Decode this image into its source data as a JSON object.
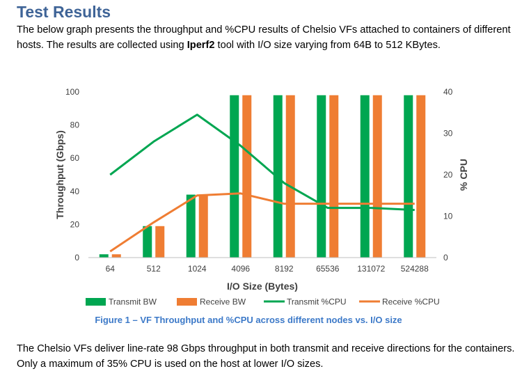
{
  "heading": "Test Results",
  "intro": {
    "pre": "The below graph presents the throughput and %CPU results of Chelsio VFs attached to containers of different hosts. The results are collected using ",
    "bold": "Iperf2",
    "post": " tool with I/O size varying from 64B to 512 KBytes."
  },
  "caption": "Figure 1 – VF Throughput and %CPU across different nodes vs. I/O size",
  "conclusion": "The Chelsio VFs deliver line-rate 98 Gbps throughput in both transmit and receive directions for the containers. Only a maximum of 35% CPU is used on the host at lower I/O sizes.",
  "colors": {
    "heading": "#3f6497",
    "caption": "#3c79c8",
    "transmit": "#00a651",
    "receive": "#ef7d33",
    "axis": "#bfbfbf"
  },
  "chart_data": {
    "type": "bar",
    "categories": [
      "64",
      "512",
      "1024",
      "4096",
      "8192",
      "65536",
      "131072",
      "524288"
    ],
    "xlabel": "I/O Size (Bytes)",
    "ylabel": "Throughput (Gbps)",
    "y2label": "% CPU",
    "ylim": [
      0,
      100
    ],
    "y2lim": [
      0,
      40
    ],
    "yticks": [
      0,
      20,
      40,
      60,
      80,
      100
    ],
    "y2ticks": [
      0,
      10,
      20,
      30,
      40
    ],
    "grid": false,
    "legend_position": "bottom",
    "series": [
      {
        "name": "Transmit BW",
        "kind": "bar",
        "axis": "left",
        "color": "#00a651",
        "values": [
          2,
          19,
          38,
          98,
          98,
          98,
          98,
          98
        ]
      },
      {
        "name": "Receive BW",
        "kind": "bar",
        "axis": "left",
        "color": "#ef7d33",
        "values": [
          2,
          19,
          38,
          98,
          98,
          98,
          98,
          98
        ]
      },
      {
        "name": "Transmit %CPU",
        "kind": "line",
        "axis": "right",
        "color": "#00a651",
        "values": [
          20,
          28,
          34.5,
          27,
          18,
          12,
          12,
          11.5
        ]
      },
      {
        "name": "Receive %CPU",
        "kind": "line",
        "axis": "right",
        "color": "#ef7d33",
        "values": [
          1.5,
          8.5,
          15,
          15.5,
          13,
          13,
          13,
          13
        ]
      }
    ]
  }
}
